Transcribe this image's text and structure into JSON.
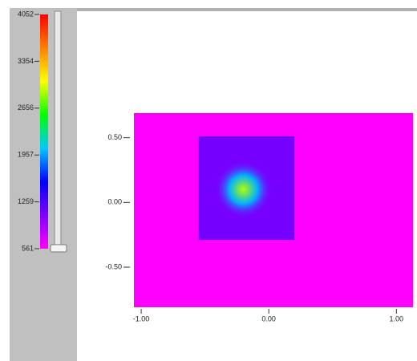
{
  "chart_data": {
    "type": "heatmap",
    "colormap": [
      "#ff00ff",
      "#8000ff",
      "#0000ff",
      "#00c8ff",
      "#00ff00",
      "#ffff00",
      "#ff8000",
      "#ff0000"
    ],
    "colorbar_lim": [
      561,
      4052
    ],
    "colorbar_ticks": [
      4052,
      3354,
      2656,
      1957,
      1259,
      561
    ],
    "xlim": [
      -1.057,
      1.13
    ],
    "ylim": [
      -0.81,
      0.69
    ],
    "xticks": [
      {
        "value": -1,
        "label": "-1.00"
      },
      {
        "value": 0,
        "label": "0.00"
      },
      {
        "value": 1,
        "label": "1.00"
      }
    ],
    "yticks": [
      {
        "value": 0.5,
        "label": "0.50"
      },
      {
        "value": 0,
        "label": "0.00"
      },
      {
        "value": -0.5,
        "label": "-0.50"
      }
    ],
    "background_value": 561,
    "scan_region": {
      "xlim": [
        -0.55,
        0.2
      ],
      "ylim": [
        -0.29,
        0.51
      ],
      "value": 1100
    },
    "peak": {
      "x": -0.2,
      "y": 0.1,
      "value": 2900,
      "radius": 0.14
    }
  }
}
